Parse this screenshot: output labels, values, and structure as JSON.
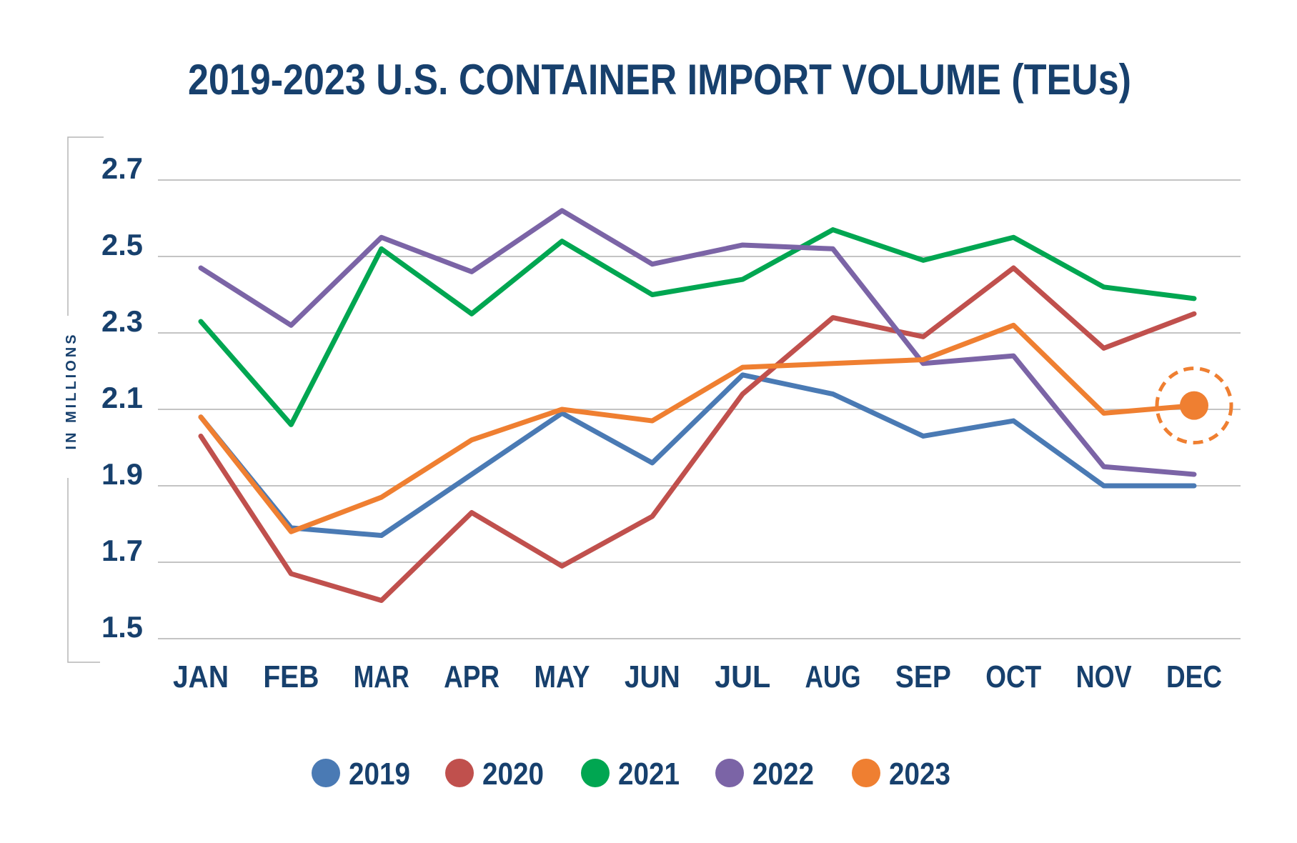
{
  "chart_data": {
    "type": "line",
    "title": "2019-2023 U.S. CONTAINER IMPORT VOLUME (TEUs)",
    "ylabel": "IN MILLIONS",
    "xlabel": "",
    "categories": [
      "JAN",
      "FEB",
      "MAR",
      "APR",
      "MAY",
      "JUN",
      "JUL",
      "AUG",
      "SEP",
      "OCT",
      "NOV",
      "DEC"
    ],
    "ylim": [
      1.5,
      2.7
    ],
    "yticks": [
      "2.7",
      "2.5",
      "2.3",
      "2.1",
      "1.9",
      "1.7",
      "1.5"
    ],
    "ytick_values": [
      2.7,
      2.5,
      2.3,
      2.1,
      1.9,
      1.7,
      1.5
    ],
    "grid": true,
    "legend_position": "bottom",
    "text_color": "#17406d",
    "series": [
      {
        "name": "2019",
        "color": "#4a7ab4",
        "values": [
          2.08,
          1.79,
          1.77,
          1.93,
          2.09,
          1.96,
          2.19,
          2.14,
          2.03,
          2.07,
          1.9,
          1.9
        ]
      },
      {
        "name": "2020",
        "color": "#c0504d",
        "values": [
          2.03,
          1.67,
          1.6,
          1.83,
          1.69,
          1.82,
          2.14,
          2.34,
          2.29,
          2.47,
          2.26,
          2.35
        ]
      },
      {
        "name": "2021",
        "color": "#00a651",
        "values": [
          2.33,
          2.06,
          2.52,
          2.35,
          2.54,
          2.4,
          2.44,
          2.57,
          2.49,
          2.55,
          2.42,
          2.39
        ]
      },
      {
        "name": "2022",
        "color": "#7b64a6",
        "values": [
          2.47,
          2.32,
          2.55,
          2.46,
          2.62,
          2.48,
          2.53,
          2.52,
          2.22,
          2.24,
          1.95,
          1.93
        ]
      },
      {
        "name": "2023",
        "color": "#ef7f31",
        "values": [
          2.08,
          1.78,
          1.87,
          2.02,
          2.1,
          2.07,
          2.21,
          2.22,
          2.23,
          2.32,
          2.09,
          2.11
        ]
      }
    ],
    "highlight": {
      "series": "2023",
      "category": "DEC"
    }
  }
}
